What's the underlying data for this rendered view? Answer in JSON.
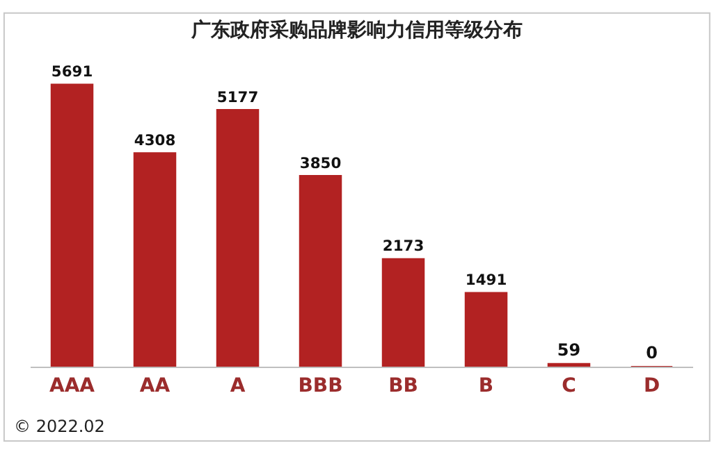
{
  "chart_data": {
    "type": "bar",
    "title": "广东政府采购品牌影响力信用等级分布",
    "categories": [
      "AAA",
      "AA",
      "A",
      "BBB",
      "BB",
      "B",
      "C",
      "D"
    ],
    "values": [
      5691,
      4308,
      5177,
      3850,
      2173,
      1491,
      59,
      0
    ],
    "color": "#b22222",
    "data_labels": true,
    "annotations": [
      "© 2022.02"
    ]
  }
}
